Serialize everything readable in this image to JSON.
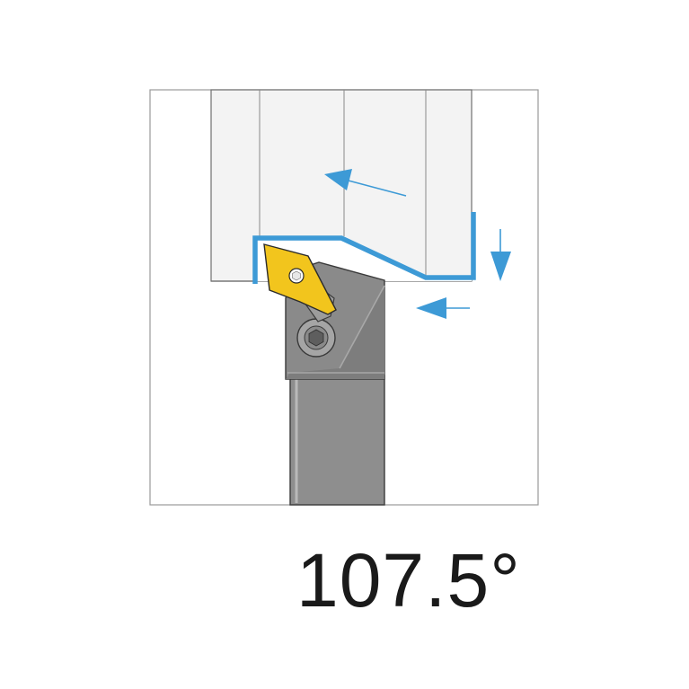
{
  "angle_label": "107.5°",
  "colors": {
    "toolpath": "#3d9ad6",
    "insert": "#f2c51d",
    "holder": "#8e8e8e",
    "workpiece": "#f3f3f3",
    "frame": "#9a9a9a",
    "background": "#ffffff"
  },
  "icons": {
    "feed_direction": "arrow-icon",
    "clamp_screw": "hex-socket-screw-icon",
    "insert_screw": "insert-screw-icon"
  }
}
